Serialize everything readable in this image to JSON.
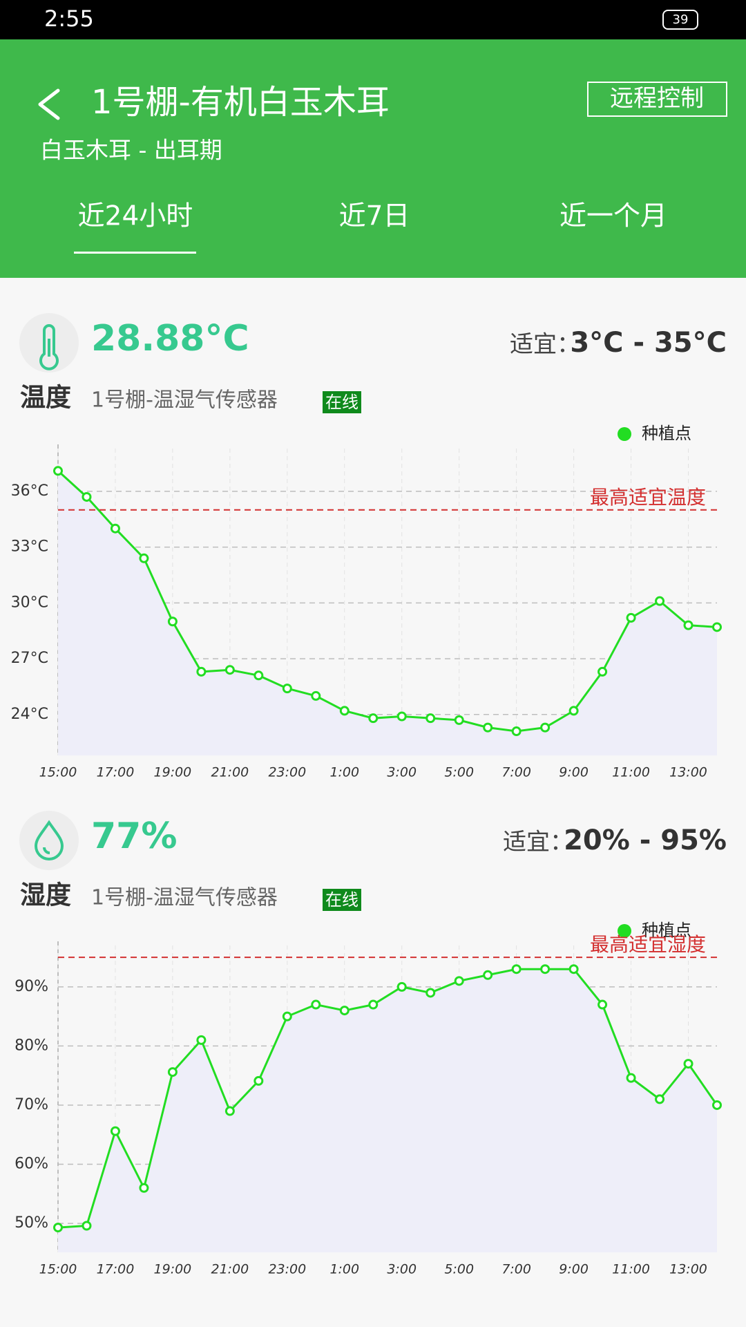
{
  "status_bar": {
    "time": "2:55",
    "battery": "39"
  },
  "header": {
    "title": "1号棚-有机白玉木耳",
    "subtitle": "白玉木耳 - 出耳期",
    "button": "远程控制",
    "tabs": [
      "近24小时",
      "近7日",
      "近一个月"
    ]
  },
  "cards": [
    {
      "value": "28.88°C",
      "range_label": "适宜：",
      "range": "3°C - 35°C",
      "name": "温度",
      "sensor": "1号棚-温湿气传感器",
      "status": "在线"
    },
    {
      "value": "77%",
      "range_label": "适宜：",
      "range": "20% - 95%",
      "name": "湿度",
      "sensor": "1号棚-温湿气传感器",
      "status": "在线"
    }
  ],
  "chart_data": [
    {
      "type": "line",
      "categories": [
        "15:00",
        null,
        "17:00",
        null,
        "19:00",
        null,
        "21:00",
        null,
        "23:00",
        null,
        "1:00",
        null,
        "3:00",
        null,
        "5:00",
        null,
        "7:00",
        null,
        "9:00",
        null,
        "11:00",
        null,
        "13:00",
        null
      ],
      "series": [
        {
          "name": "种植点",
          "color": "#22dd22",
          "values": [
            37.1,
            35.7,
            34.0,
            32.4,
            29.0,
            26.3,
            26.4,
            26.1,
            25.4,
            25.0,
            24.2,
            23.8,
            23.9,
            23.8,
            23.7,
            23.3,
            23.1,
            23.3,
            24.2,
            26.3,
            29.2,
            30.1,
            28.8,
            28.7
          ]
        }
      ],
      "ylim": [
        21.8,
        38.3
      ],
      "yticks": [
        {
          "value": 24,
          "label": "24°C"
        },
        {
          "value": 27,
          "label": "27°C"
        },
        {
          "value": 30,
          "label": "30°C"
        },
        {
          "value": 33,
          "label": "33°C"
        },
        {
          "value": 36,
          "label": "36°C"
        }
      ],
      "threshold": {
        "value": 35,
        "label": "最高适宜温度",
        "color": "#d32f2f"
      },
      "grid": true,
      "legend": "top-right"
    },
    {
      "type": "line",
      "categories": [
        "15:00",
        null,
        "17:00",
        null,
        "19:00",
        null,
        "21:00",
        null,
        "23:00",
        null,
        "1:00",
        null,
        "3:00",
        null,
        "5:00",
        null,
        "7:00",
        null,
        "9:00",
        null,
        "11:00",
        null,
        "13:00",
        null
      ],
      "series": [
        {
          "name": "种植点",
          "color": "#22dd22",
          "values": [
            49.3,
            49.6,
            65.6,
            56.0,
            75.6,
            81.0,
            69.0,
            74.1,
            85.0,
            87.0,
            86.0,
            87.0,
            90.0,
            89.0,
            91.0,
            92.0,
            93.0,
            93.0,
            93.0,
            87.0,
            74.6,
            71.0,
            77.0,
            70.0
          ]
        }
      ],
      "ylim": [
        45.1,
        97.0
      ],
      "yticks": [
        {
          "value": 50,
          "label": "50%"
        },
        {
          "value": 60,
          "label": "60%"
        },
        {
          "value": 70,
          "label": "70%"
        },
        {
          "value": 80,
          "label": "80%"
        },
        {
          "value": 90,
          "label": "90%"
        }
      ],
      "threshold": {
        "value": 95,
        "label": "最高适宜湿度",
        "color": "#d32f2f"
      },
      "grid": true,
      "legend": "top-right"
    }
  ]
}
